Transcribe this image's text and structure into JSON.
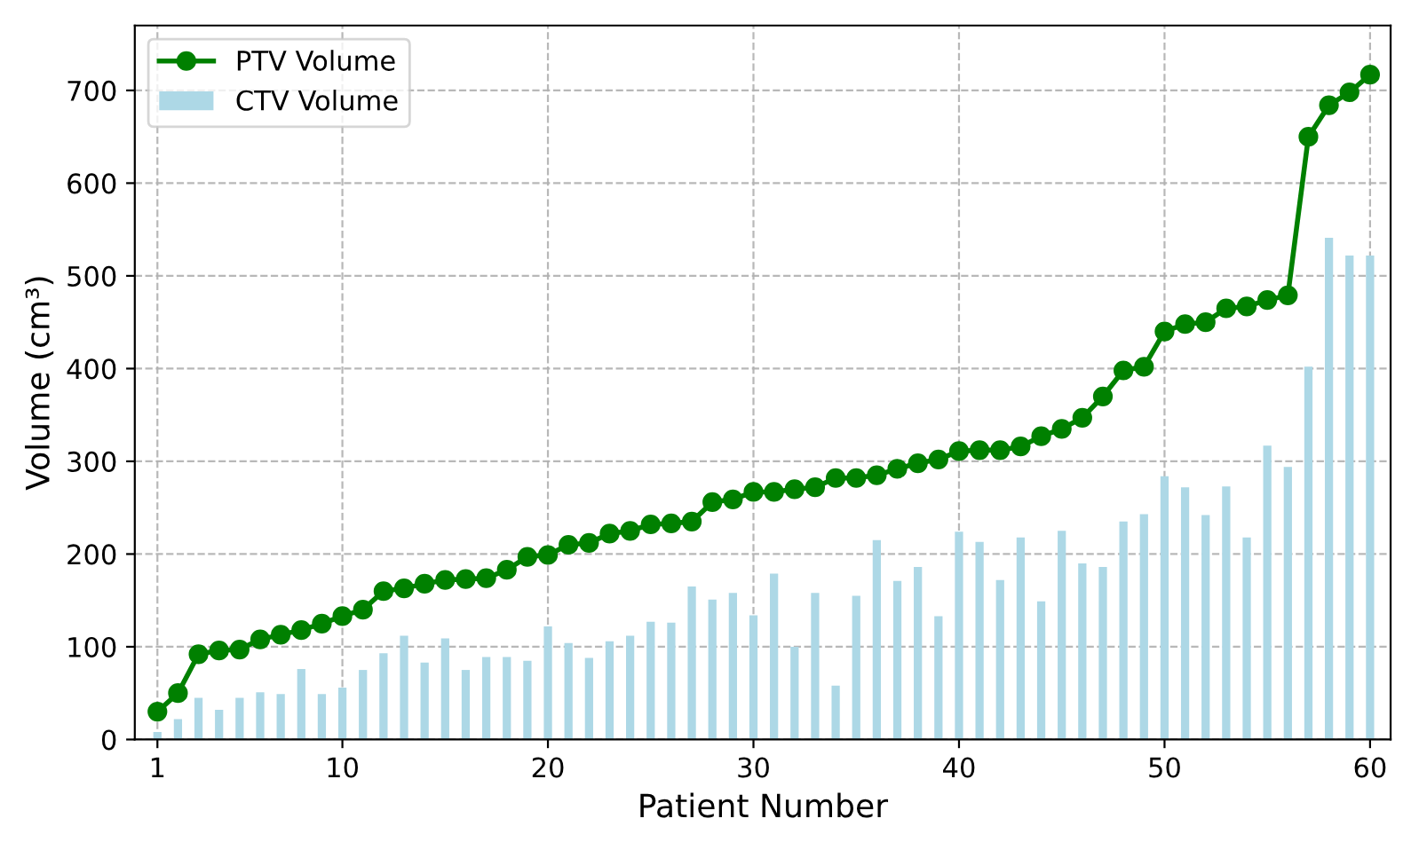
{
  "chart_data": {
    "type": "bar",
    "xlabel": "Patient Number",
    "ylabel": "Volume (cm³)",
    "x": [
      1,
      2,
      3,
      4,
      5,
      6,
      7,
      8,
      9,
      10,
      11,
      12,
      13,
      14,
      15,
      16,
      17,
      18,
      19,
      20,
      21,
      22,
      23,
      24,
      25,
      26,
      27,
      28,
      29,
      30,
      31,
      32,
      33,
      34,
      35,
      36,
      37,
      38,
      39,
      40,
      41,
      42,
      43,
      44,
      45,
      46,
      47,
      48,
      49,
      50,
      51,
      52,
      53,
      54,
      55,
      56,
      57,
      58,
      59,
      60
    ],
    "series": [
      {
        "name": "PTV Volume",
        "type": "line",
        "color": "#008000",
        "marker": "circle",
        "line_style": "solid",
        "values": [
          30,
          50,
          92,
          96,
          97,
          108,
          113,
          118,
          125,
          133,
          140,
          160,
          163,
          168,
          172,
          173,
          174,
          183,
          197,
          199,
          210,
          212,
          222,
          225,
          232,
          233,
          235,
          256,
          259,
          267,
          267,
          270,
          272,
          282,
          282,
          285,
          292,
          298,
          302,
          311,
          312,
          312,
          316,
          327,
          335,
          347,
          370,
          398,
          402,
          440,
          448,
          450,
          465,
          467,
          474,
          479,
          650,
          684,
          698,
          717
        ]
      },
      {
        "name": "CTV Volume",
        "color": "#add8e6",
        "values": [
          8,
          22,
          45,
          32,
          45,
          51,
          49,
          76,
          49,
          56,
          75,
          93,
          112,
          83,
          109,
          75,
          89,
          89,
          85,
          122,
          104,
          88,
          106,
          112,
          127,
          126,
          165,
          151,
          158,
          134,
          179,
          100,
          158,
          58,
          155,
          215,
          171,
          186,
          133,
          224,
          213,
          172,
          218,
          149,
          225,
          190,
          186,
          235,
          243,
          284,
          272,
          242,
          273,
          218,
          317,
          294,
          402,
          541,
          522,
          522
        ]
      }
    ],
    "xlim": [
      -0.1,
      61
    ],
    "xticks": [
      1,
      10,
      20,
      30,
      40,
      50,
      60
    ],
    "ylim": [
      0,
      770
    ],
    "yticks": [
      0,
      100,
      200,
      300,
      400,
      500,
      600,
      700
    ],
    "grid": true,
    "legend": "top left"
  }
}
